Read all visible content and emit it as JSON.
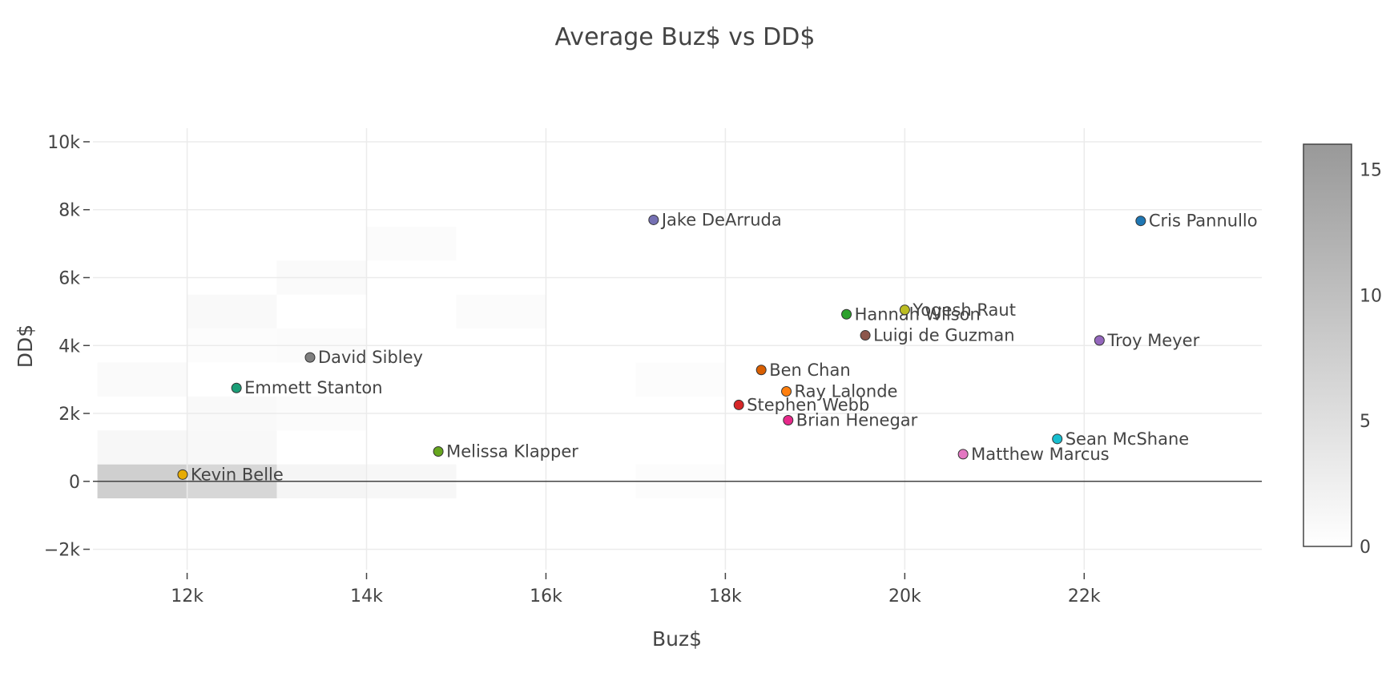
{
  "chart_data": {
    "type": "scatter",
    "title": "Average Buz$ vs DD$",
    "xlabel": "Buz$",
    "ylabel": "DD$",
    "xlim": [
      10950,
      23980
    ],
    "ylim": [
      -2600,
      10400
    ],
    "x_ticks": [
      {
        "value": 12000,
        "label": "12k"
      },
      {
        "value": 14000,
        "label": "14k"
      },
      {
        "value": 16000,
        "label": "16k"
      },
      {
        "value": 18000,
        "label": "18k"
      },
      {
        "value": 20000,
        "label": "20k"
      },
      {
        "value": 22000,
        "label": "22k"
      }
    ],
    "y_ticks": [
      {
        "value": -2000,
        "label": "−2k"
      },
      {
        "value": 0,
        "label": "0"
      },
      {
        "value": 2000,
        "label": "2k"
      },
      {
        "value": 4000,
        "label": "4k"
      },
      {
        "value": 6000,
        "label": "6k"
      },
      {
        "value": 8000,
        "label": "8k"
      },
      {
        "value": 10000,
        "label": "10k"
      }
    ],
    "points": [
      {
        "name": "Kevin Belle",
        "x": 11950,
        "y": 200,
        "color": "#e6ab02"
      },
      {
        "name": "Emmett Stanton",
        "x": 12550,
        "y": 2750,
        "color": "#1b9e77"
      },
      {
        "name": "David Sibley",
        "x": 13370,
        "y": 3650,
        "color": "#7f7f7f"
      },
      {
        "name": "Melissa Klapper",
        "x": 14800,
        "y": 880,
        "color": "#66a61e"
      },
      {
        "name": "Jake DeArruda",
        "x": 17200,
        "y": 7700,
        "color": "#7570b3"
      },
      {
        "name": "Stephen Webb",
        "x": 18150,
        "y": 2250,
        "color": "#d62728"
      },
      {
        "name": "Ben Chan",
        "x": 18400,
        "y": 3280,
        "color": "#d95f02"
      },
      {
        "name": "Ray Lalonde",
        "x": 18680,
        "y": 2650,
        "color": "#ff7f0e"
      },
      {
        "name": "Brian Henegar",
        "x": 18700,
        "y": 1800,
        "color": "#e7298a"
      },
      {
        "name": "Hannah Wilson",
        "x": 19350,
        "y": 4920,
        "color": "#2ca02c"
      },
      {
        "name": "Luigi de Guzman",
        "x": 19560,
        "y": 4300,
        "color": "#8c564b"
      },
      {
        "name": "Yogesh Raut",
        "x": 20000,
        "y": 5050,
        "color": "#bcbd22"
      },
      {
        "name": "Matthew Marcus",
        "x": 20650,
        "y": 800,
        "color": "#e377c2"
      },
      {
        "name": "Sean McShane",
        "x": 21700,
        "y": 1250,
        "color": "#17becf"
      },
      {
        "name": "Troy Meyer",
        "x": 22170,
        "y": 4150,
        "color": "#9467bd"
      },
      {
        "name": "Cris Pannullo",
        "x": 22630,
        "y": 7670,
        "color": "#1f77b4"
      }
    ],
    "density": {
      "x_bin": 1000,
      "y_bin": 1000,
      "cells": [
        {
          "x0": 11000,
          "y0": -500,
          "count": 7.5
        },
        {
          "x0": 12000,
          "y0": -500,
          "count": 6.2
        },
        {
          "x0": 13000,
          "y0": -500,
          "count": 1.5
        },
        {
          "x0": 14000,
          "y0": -500,
          "count": 1.2
        },
        {
          "x0": 11000,
          "y0": 500,
          "count": 1.3
        },
        {
          "x0": 12000,
          "y0": 500,
          "count": 1.1
        },
        {
          "x0": 12000,
          "y0": 1500,
          "count": 1.0
        },
        {
          "x0": 13000,
          "y0": 1500,
          "count": 0.6
        },
        {
          "x0": 11000,
          "y0": 2500,
          "count": 0.8
        },
        {
          "x0": 12000,
          "y0": 3500,
          "count": 0.5
        },
        {
          "x0": 13000,
          "y0": 3500,
          "count": 0.6
        },
        {
          "x0": 12000,
          "y0": 4500,
          "count": 1.0
        },
        {
          "x0": 13000,
          "y0": 5500,
          "count": 0.8
        },
        {
          "x0": 14000,
          "y0": 6500,
          "count": 0.7
        },
        {
          "x0": 15000,
          "y0": 4500,
          "count": 0.6
        },
        {
          "x0": 17000,
          "y0": 2500,
          "count": 0.5
        },
        {
          "x0": 17000,
          "y0": -500,
          "count": 0.5
        }
      ]
    },
    "colorbar": {
      "min": 0,
      "max": 16,
      "ticks": [
        {
          "value": 0,
          "label": "0"
        },
        {
          "value": 5,
          "label": "5"
        },
        {
          "value": 10,
          "label": "10"
        },
        {
          "value": 15,
          "label": "15"
        }
      ],
      "color_low": "#ffffff",
      "color_high": "#999999"
    }
  }
}
